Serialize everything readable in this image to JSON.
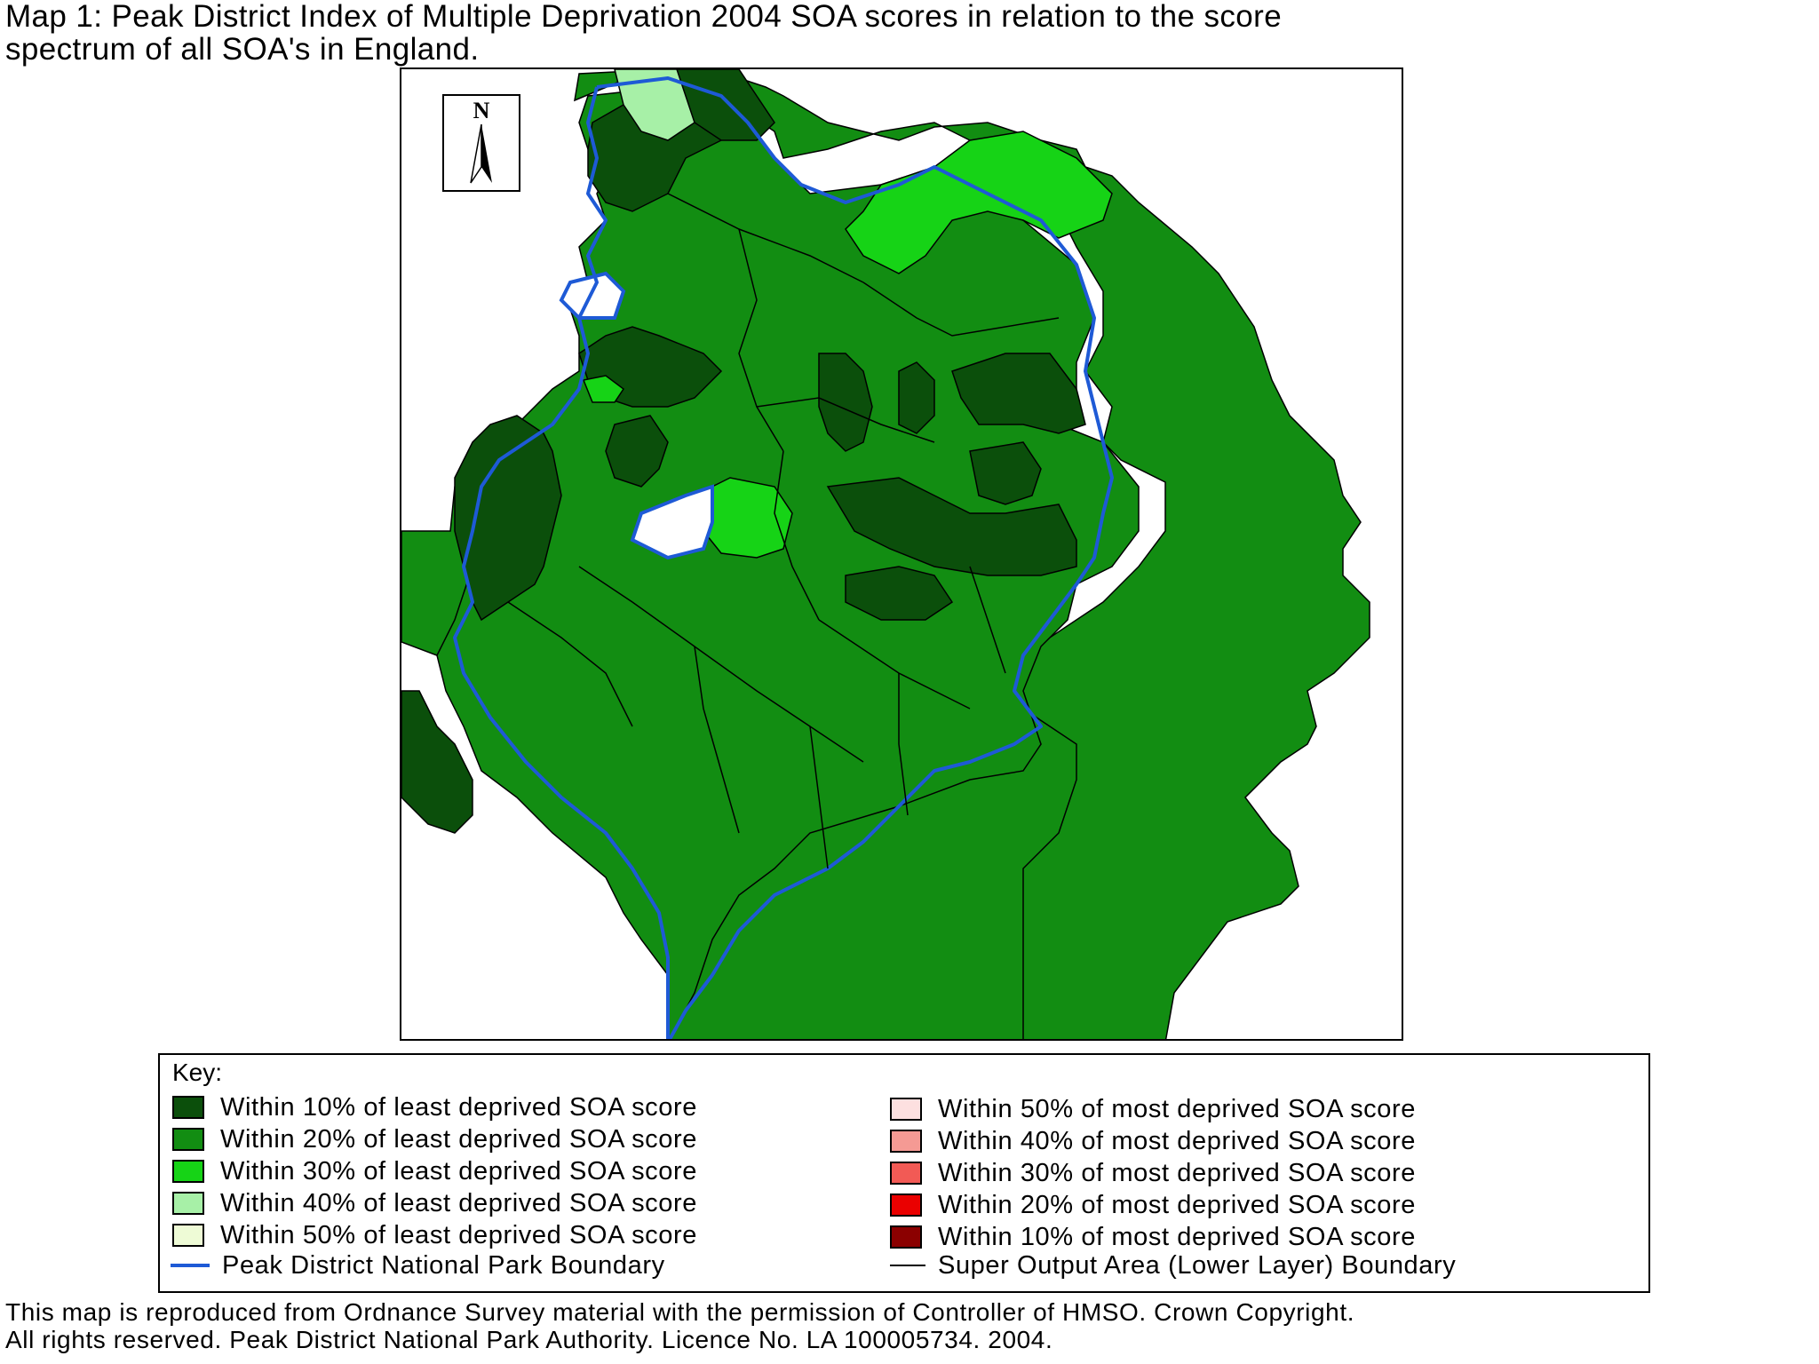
{
  "title": {
    "line1": "Map 1: Peak District Index of Multiple Deprivation 2004 SOA scores in relation to the score",
    "line2": "spectrum of all SOA's in England."
  },
  "map": {
    "north_arrow": "N",
    "colors": {
      "least_10": "#0b4f0b",
      "least_20": "#128d12",
      "least_30": "#16d316",
      "least_40": "#a7f0a7",
      "least_50": "#eefbd6",
      "most_50": "#fde0e0",
      "most_40": "#f59a94",
      "most_30": "#f25a55",
      "most_20": "#ea0000",
      "most_10": "#8b0000",
      "park_boundary": "#1e5ad6",
      "soa_boundary": "#000000"
    }
  },
  "key": {
    "title": "Key:",
    "left": [
      {
        "label": "Within 10% of least deprived SOA score",
        "color": "#0b4f0b"
      },
      {
        "label": "Within 20% of least deprived SOA score",
        "color": "#128d12"
      },
      {
        "label": "Within 30% of least deprived SOA score",
        "color": "#16d316"
      },
      {
        "label": "Within 40% of least deprived SOA score",
        "color": "#a7f0a7"
      },
      {
        "label": "Within 50% of least deprived SOA score",
        "color": "#eefbd6"
      }
    ],
    "right": [
      {
        "label": "Within 50% of most deprived SOA score",
        "color": "#fde0e0"
      },
      {
        "label": "Within 40% of most deprived SOA score",
        "color": "#f59a94"
      },
      {
        "label": "Within 30% of most deprived SOA score",
        "color": "#f25a55"
      },
      {
        "label": "Within 20% of most deprived SOA score",
        "color": "#ea0000"
      },
      {
        "label": "Within 10% of most deprived SOA score",
        "color": "#8b0000"
      }
    ],
    "park_boundary_label": "Peak District National Park Boundary",
    "soa_boundary_label": "Super Output Area (Lower Layer) Boundary"
  },
  "footer": {
    "line1": "This map is reproduced from Ordnance Survey material with the permission of Controller of HMSO. Crown Copyright.",
    "line2": "All rights reserved. Peak District National Park Authority. Licence No. LA 100005734. 2004."
  }
}
